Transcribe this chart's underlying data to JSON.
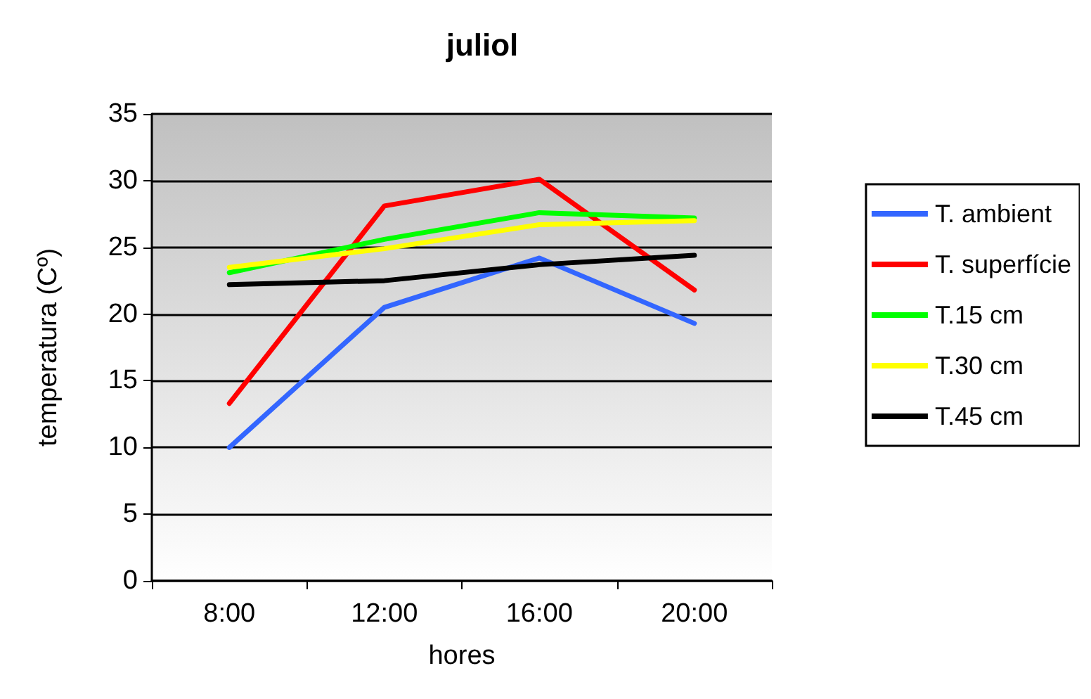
{
  "chart_data": {
    "type": "line",
    "title": "juliol",
    "xlabel": "hores",
    "ylabel": "temperatura (Cº)",
    "categories": [
      "8:00",
      "12:00",
      "16:00",
      "20:00"
    ],
    "series": [
      {
        "name": "T. ambient",
        "color": "#3366ff",
        "values": [
          10,
          20.5,
          24.2,
          19.3
        ]
      },
      {
        "name": "T. superfície",
        "color": "#ff0000",
        "values": [
          13.3,
          28.1,
          30.1,
          21.8
        ]
      },
      {
        "name": "T.15 cm",
        "color": "#00ff00",
        "values": [
          23.1,
          25.6,
          27.6,
          27.2
        ]
      },
      {
        "name": "T.30 cm",
        "color": "#ffff00",
        "values": [
          23.5,
          24.9,
          26.7,
          27.0
        ]
      },
      {
        "name": "T.45 cm",
        "color": "#000000",
        "values": [
          22.2,
          22.5,
          23.7,
          24.4
        ]
      }
    ],
    "ylim": [
      0,
      35
    ],
    "yticks": [
      0,
      5,
      10,
      15,
      20,
      25,
      30,
      35
    ],
    "grid": "y",
    "legend": "right",
    "marker": "none",
    "line_style": "solid"
  }
}
